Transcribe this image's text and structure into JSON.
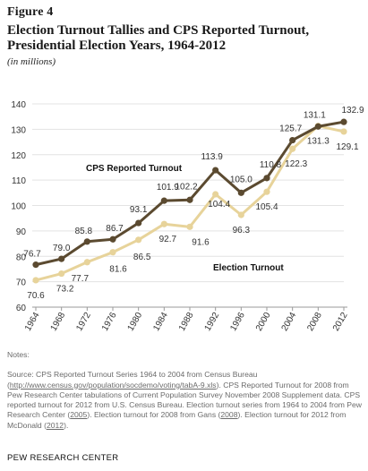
{
  "figure_label": "Figure 4",
  "title": "Election Turnout Tallies and CPS Reported Turnout, Presidential Election Years, 1964-2012",
  "subtitle": "(in millions)",
  "colors": {
    "cps": "#5b4a30",
    "election": "#e7d39a",
    "axis": "#9a9a9a",
    "grid": "#e3e3e3"
  },
  "chart_data": {
    "type": "line",
    "categories": [
      "1964",
      "1968",
      "1972",
      "1976",
      "1980",
      "1984",
      "1988",
      "1992",
      "1996",
      "2000",
      "2004",
      "2008",
      "2012"
    ],
    "ylim": [
      60,
      140
    ],
    "yticks": [
      60,
      70,
      80,
      90,
      100,
      110,
      120,
      130,
      140
    ],
    "series": [
      {
        "name": "CPS Reported Turnout",
        "values": [
          76.7,
          79.0,
          85.8,
          86.7,
          93.1,
          101.9,
          102.2,
          113.9,
          105.0,
          110.8,
          125.7,
          131.1,
          132.9
        ],
        "labels": [
          "76.7",
          "79.0",
          "85.8",
          "86.7",
          "93.1",
          "101.9",
          "102.2",
          "113.9",
          "105.0",
          "110.8",
          "125.7",
          "131.1",
          "132.9"
        ]
      },
      {
        "name": "Election Turnout",
        "values": [
          70.6,
          73.2,
          77.7,
          81.6,
          86.5,
          92.7,
          91.6,
          104.4,
          96.3,
          105.4,
          122.3,
          131.3,
          129.1
        ],
        "labels": [
          "70.6",
          "73.2",
          "77.7",
          "81.6",
          "86.5",
          "92.7",
          "91.6",
          "104.4",
          "96.3",
          "105.4",
          "122.3",
          "131.3",
          "129.1"
        ]
      }
    ]
  },
  "notes": {
    "label": "Notes:",
    "source_prefix": "Source: CPS Reported Turnout Series 1964 to 2004 from Census Bureau (",
    "link1": "http://www.census.gov/population/socdemo/voting/tabA-9.xls",
    "source_mid1": "). CPS Reported Turnout for 2008 from Pew Research Center tabulations of Current Population Survey November 2008 Supplement data. CPS reported turnout for 2012 from U.S. Census Bureau. Election turnout series from 1964 to 2004 from Pew Research Center (",
    "link2": "2005",
    "source_mid2": "). Election turnout for 2008 from Gans (",
    "link3": "2008",
    "source_mid3": "). Election turnout for 2012 from McDonald (",
    "link4": "2012",
    "source_end": ")."
  },
  "footer": "PEW RESEARCH CENTER"
}
